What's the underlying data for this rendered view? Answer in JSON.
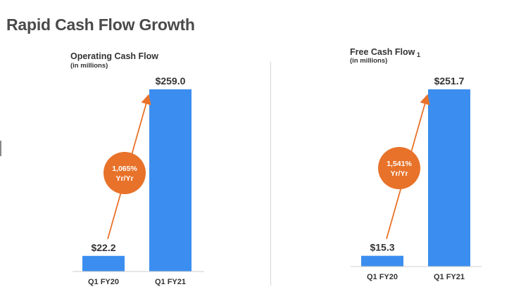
{
  "slide": {
    "title": "Rapid Cash Flow Growth"
  },
  "chart_data": [
    {
      "type": "bar",
      "title": "Operating Cash Flow",
      "subtitle": "(in millions)",
      "categories": [
        "Q1 FY20",
        "Q1 FY21"
      ],
      "values": [
        22.2,
        259.0
      ],
      "value_labels": [
        "$22.2",
        "$259.0"
      ],
      "growth_label": [
        "1,065%",
        "Yr/Yr"
      ],
      "bar_color": "#3B8EEF",
      "accent_color": "#E8722A",
      "ylim": [
        0,
        259.0
      ]
    },
    {
      "type": "bar",
      "title": "Free Cash Flow",
      "subtitle": "(in millions)",
      "footnote": "1",
      "categories": [
        "Q1 FY20",
        "Q1 FY21"
      ],
      "values": [
        15.3,
        251.7
      ],
      "value_labels": [
        "$15.3",
        "$251.7"
      ],
      "growth_label": [
        "1,541%",
        "Yr/Yr"
      ],
      "bar_color": "#3B8EEF",
      "accent_color": "#E8722A",
      "ylim": [
        0,
        251.7
      ]
    }
  ]
}
